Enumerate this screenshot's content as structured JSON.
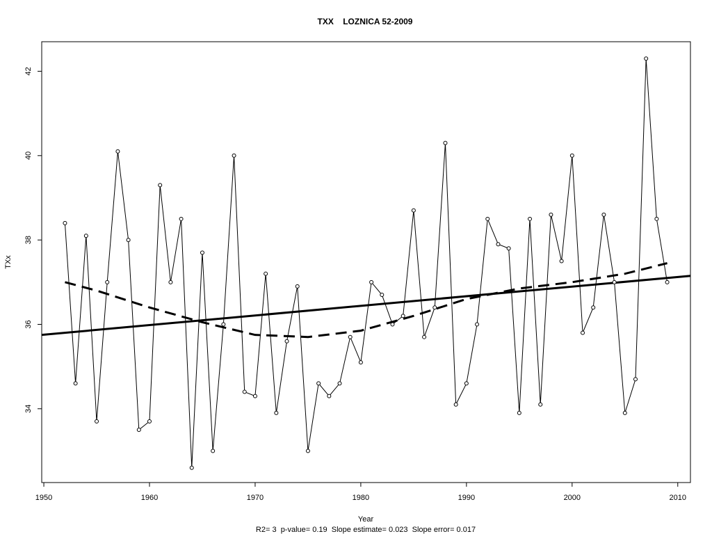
{
  "chart_data": {
    "type": "line",
    "title": "TXX    LOZNICA 52-2009",
    "xlabel": "Year",
    "ylabel": "TXx",
    "footer": "R2= 3  p-value= 0.19  Slope estimate= 0.023  Slope error= 0.017",
    "xlim": [
      1949.8,
      2011.2
    ],
    "ylim": [
      32.25,
      42.7
    ],
    "x_ticks": [
      1950,
      1960,
      1970,
      1980,
      1990,
      2000,
      2010
    ],
    "y_ticks": [
      34,
      36,
      38,
      40,
      42
    ],
    "grid": false,
    "legend": "none",
    "x": [
      1952,
      1953,
      1954,
      1955,
      1956,
      1957,
      1958,
      1959,
      1960,
      1961,
      1962,
      1963,
      1964,
      1965,
      1966,
      1967,
      1968,
      1969,
      1970,
      1971,
      1972,
      1973,
      1974,
      1975,
      1976,
      1977,
      1978,
      1979,
      1980,
      1981,
      1982,
      1983,
      1984,
      1985,
      1986,
      1987,
      1988,
      1989,
      1990,
      1991,
      1992,
      1993,
      1994,
      1995,
      1996,
      1997,
      1998,
      1999,
      2000,
      2001,
      2002,
      2003,
      2004,
      2005,
      2006,
      2007,
      2008,
      2009
    ],
    "series": [
      {
        "values": [
          38.4,
          34.6,
          38.1,
          33.7,
          37.0,
          40.1,
          38.0,
          33.5,
          33.7,
          39.3,
          37.0,
          38.5,
          32.6,
          37.7,
          33.0,
          36.0,
          40.0,
          34.4,
          34.3,
          37.2,
          33.9,
          35.6,
          36.9,
          33.0,
          34.6,
          34.3,
          34.6,
          35.7,
          35.1,
          37.0,
          36.7,
          36.0,
          36.2,
          38.7,
          35.7,
          36.4,
          40.3,
          34.1,
          34.6,
          36.0,
          38.5,
          37.9,
          37.8,
          33.9,
          38.5,
          34.1,
          38.6,
          37.5,
          40.0,
          35.8,
          36.4,
          38.6,
          37.0,
          33.9,
          34.7,
          42.3,
          38.5,
          37.0
        ],
        "style": "thin solid line with open circle markers",
        "color": "#000000"
      }
    ],
    "trend_line": {
      "style": "thick solid",
      "color": "#000000",
      "x": [
        1949.8,
        2011.2
      ],
      "y": [
        35.75,
        37.15
      ]
    },
    "smooth_curve": {
      "style": "thick dashed",
      "color": "#000000",
      "x": [
        1952,
        1955,
        1960,
        1965,
        1970,
        1975,
        1980,
        1985,
        1990,
        1995,
        2000,
        2005,
        2009
      ],
      "y": [
        37.0,
        36.8,
        36.4,
        36.05,
        35.75,
        35.7,
        35.85,
        36.2,
        36.6,
        36.85,
        37.0,
        37.2,
        37.45
      ]
    }
  }
}
